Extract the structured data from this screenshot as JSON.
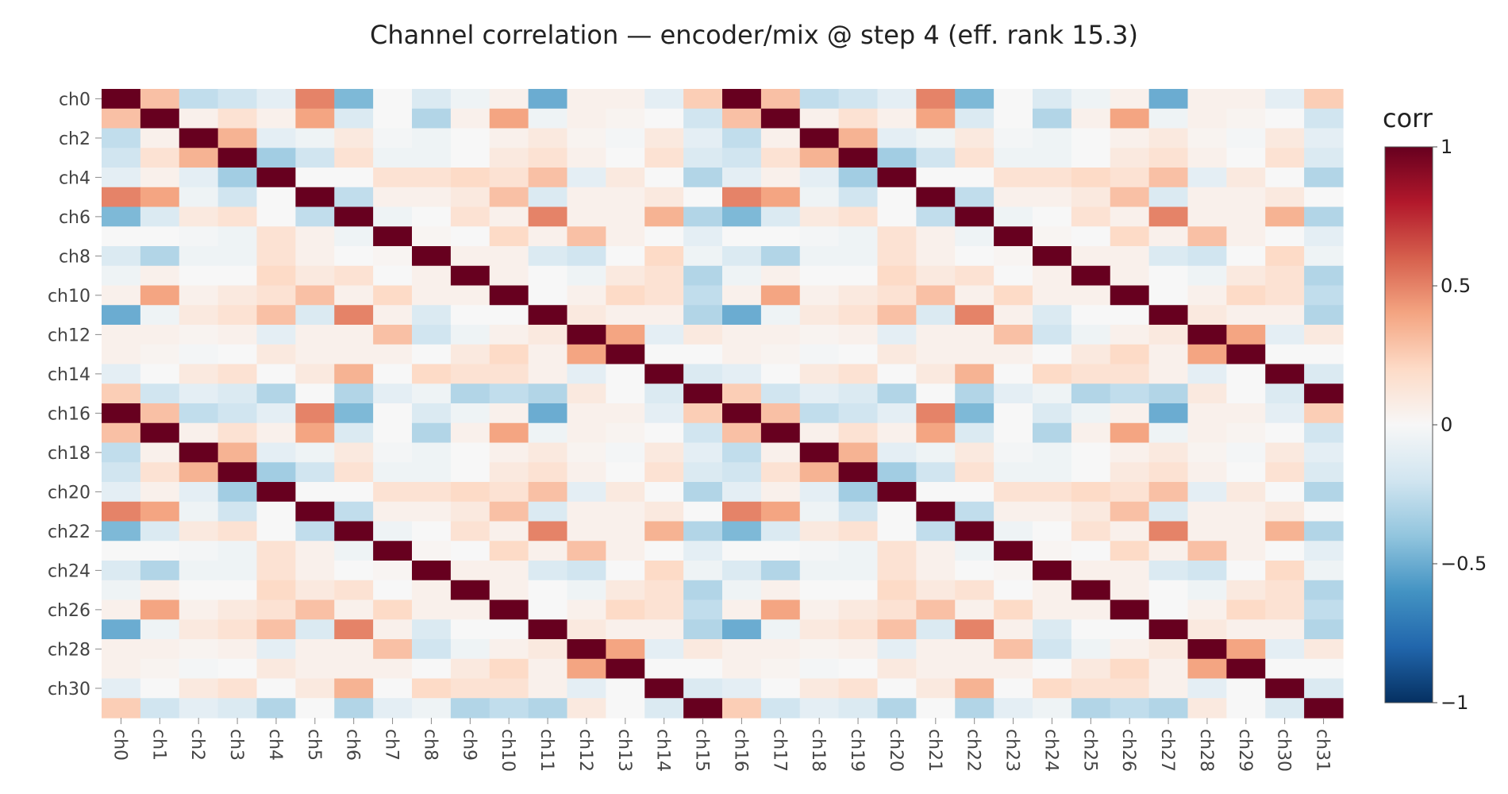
{
  "chart_data": {
    "type": "heatmap",
    "title": "Channel correlation — encoder/mix @ step 4 (eff. rank 15.3)",
    "x_labels": [
      "ch0",
      "ch1",
      "ch2",
      "ch3",
      "ch4",
      "ch5",
      "ch6",
      "ch7",
      "ch8",
      "ch9",
      "ch10",
      "ch11",
      "ch12",
      "ch13",
      "ch14",
      "ch15",
      "ch16",
      "ch17",
      "ch18",
      "ch19",
      "ch20",
      "ch21",
      "ch22",
      "ch23",
      "ch24",
      "ch25",
      "ch26",
      "ch27",
      "ch28",
      "ch29",
      "ch30",
      "ch31"
    ],
    "y_tick_labels": [
      "ch0",
      "ch2",
      "ch4",
      "ch6",
      "ch8",
      "ch10",
      "ch12",
      "ch14",
      "ch16",
      "ch18",
      "ch20",
      "ch22",
      "ch24",
      "ch26",
      "ch28",
      "ch30"
    ],
    "y_tick_indices": [
      0,
      2,
      4,
      6,
      8,
      10,
      12,
      14,
      16,
      18,
      20,
      22,
      24,
      26,
      28,
      30
    ],
    "z_range": [
      -1,
      1
    ],
    "colorscale": [
      "#053061",
      "#2166ac",
      "#4393c3",
      "#92c5de",
      "#d1e5f0",
      "#f7f7f7",
      "#fddbc7",
      "#f4a582",
      "#d6604d",
      "#b2182b",
      "#67001f"
    ],
    "colorbar": {
      "title": "corr",
      "ticks": [
        1,
        0.5,
        0,
        -0.5,
        -1
      ],
      "tick_labels": [
        "1",
        "0.5",
        "0",
        "−0.5",
        "−1"
      ]
    },
    "values": [
      [
        1.0,
        0.3,
        -0.25,
        -0.2,
        -0.1,
        0.5,
        -0.45,
        0.0,
        -0.15,
        -0.05,
        0.05,
        -0.5,
        0.05,
        0.05,
        -0.1,
        0.25,
        1.0,
        0.3,
        -0.25,
        -0.2,
        -0.1,
        0.5,
        -0.45,
        0.0,
        -0.15,
        -0.05,
        0.05,
        -0.5,
        0.05,
        0.05,
        -0.1,
        0.25
      ],
      [
        0.3,
        1.0,
        0.05,
        0.15,
        0.05,
        0.4,
        -0.15,
        0.0,
        -0.3,
        0.05,
        0.4,
        -0.05,
        0.05,
        0.03,
        0.0,
        -0.2,
        0.3,
        1.0,
        0.05,
        0.15,
        0.05,
        0.4,
        -0.15,
        0.0,
        -0.3,
        0.05,
        0.4,
        -0.05,
        0.05,
        0.03,
        0.0,
        -0.2
      ],
      [
        -0.25,
        0.05,
        1.0,
        0.35,
        -0.1,
        -0.05,
        0.1,
        -0.02,
        -0.05,
        0.0,
        0.05,
        0.1,
        0.03,
        -0.02,
        0.1,
        -0.1,
        -0.25,
        0.05,
        1.0,
        0.35,
        -0.1,
        -0.05,
        0.1,
        -0.02,
        -0.05,
        0.0,
        0.05,
        0.1,
        0.03,
        -0.02,
        0.1,
        -0.1
      ],
      [
        -0.2,
        0.15,
        0.35,
        1.0,
        -0.35,
        -0.2,
        0.15,
        -0.05,
        -0.05,
        0.0,
        0.1,
        0.15,
        0.05,
        0.0,
        0.15,
        -0.15,
        -0.2,
        0.15,
        0.35,
        1.0,
        -0.35,
        -0.2,
        0.15,
        -0.05,
        -0.05,
        0.0,
        0.1,
        0.15,
        0.05,
        0.0,
        0.15,
        -0.15
      ],
      [
        -0.1,
        0.05,
        -0.1,
        -0.35,
        1.0,
        0.0,
        0.0,
        0.15,
        0.15,
        0.2,
        0.15,
        0.3,
        -0.1,
        0.1,
        0.0,
        -0.3,
        -0.1,
        0.05,
        -0.1,
        -0.35,
        1.0,
        0.0,
        0.0,
        0.15,
        0.15,
        0.2,
        0.15,
        0.3,
        -0.1,
        0.1,
        0.0,
        -0.3
      ],
      [
        0.5,
        0.4,
        -0.05,
        -0.2,
        0.0,
        1.0,
        -0.25,
        0.05,
        0.05,
        0.1,
        0.3,
        -0.15,
        0.05,
        0.05,
        0.1,
        0.0,
        0.5,
        0.4,
        -0.05,
        -0.2,
        0.0,
        1.0,
        -0.25,
        0.05,
        0.05,
        0.1,
        0.3,
        -0.15,
        0.05,
        0.05,
        0.1,
        0.0
      ],
      [
        -0.45,
        -0.15,
        0.1,
        0.15,
        0.0,
        -0.25,
        1.0,
        -0.05,
        0.0,
        0.15,
        0.05,
        0.5,
        0.05,
        0.05,
        0.35,
        -0.3,
        -0.45,
        -0.15,
        0.1,
        0.15,
        0.0,
        -0.25,
        1.0,
        -0.05,
        0.0,
        0.15,
        0.05,
        0.5,
        0.05,
        0.05,
        0.35,
        -0.3
      ],
      [
        0.0,
        0.0,
        -0.02,
        -0.05,
        0.15,
        0.05,
        -0.05,
        1.0,
        0.02,
        0.0,
        0.2,
        0.05,
        0.3,
        0.05,
        0.0,
        -0.1,
        0.0,
        0.0,
        -0.02,
        -0.05,
        0.15,
        0.05,
        -0.05,
        1.0,
        0.02,
        0.0,
        0.2,
        0.05,
        0.3,
        0.05,
        0.0,
        -0.1
      ],
      [
        -0.15,
        -0.3,
        -0.05,
        -0.05,
        0.15,
        0.05,
        0.0,
        0.02,
        1.0,
        0.05,
        0.05,
        -0.15,
        -0.2,
        0.0,
        0.2,
        -0.05,
        -0.15,
        -0.3,
        -0.05,
        -0.05,
        0.15,
        0.05,
        0.0,
        0.02,
        1.0,
        0.05,
        0.05,
        -0.15,
        -0.2,
        0.0,
        0.2,
        -0.05
      ],
      [
        -0.05,
        0.05,
        0.0,
        0.0,
        0.2,
        0.1,
        0.15,
        0.0,
        0.05,
        1.0,
        0.05,
        0.0,
        -0.05,
        0.1,
        0.15,
        -0.3,
        -0.05,
        0.05,
        0.0,
        0.0,
        0.2,
        0.1,
        0.15,
        0.0,
        0.05,
        1.0,
        0.05,
        0.0,
        -0.05,
        0.1,
        0.15,
        -0.3
      ],
      [
        0.05,
        0.4,
        0.05,
        0.1,
        0.15,
        0.3,
        0.05,
        0.2,
        0.05,
        0.05,
        1.0,
        0.0,
        0.05,
        0.2,
        0.15,
        -0.25,
        0.05,
        0.4,
        0.05,
        0.1,
        0.15,
        0.3,
        0.05,
        0.2,
        0.05,
        0.05,
        1.0,
        0.0,
        0.05,
        0.2,
        0.15,
        -0.25
      ],
      [
        -0.5,
        -0.05,
        0.1,
        0.15,
        0.3,
        -0.15,
        0.5,
        0.05,
        -0.15,
        0.0,
        0.0,
        1.0,
        0.1,
        0.05,
        0.05,
        -0.3,
        -0.5,
        -0.05,
        0.1,
        0.15,
        0.3,
        -0.15,
        0.5,
        0.05,
        -0.15,
        0.0,
        0.0,
        1.0,
        0.1,
        0.05,
        0.05,
        -0.3
      ],
      [
        0.05,
        0.05,
        0.03,
        0.05,
        -0.1,
        0.05,
        0.05,
        0.3,
        -0.2,
        -0.05,
        0.05,
        0.1,
        1.0,
        0.4,
        -0.1,
        0.1,
        0.05,
        0.05,
        0.03,
        0.05,
        -0.1,
        0.05,
        0.05,
        0.3,
        -0.2,
        -0.05,
        0.05,
        0.1,
        1.0,
        0.4,
        -0.1,
        0.1
      ],
      [
        0.05,
        0.03,
        -0.02,
        0.0,
        0.1,
        0.05,
        0.05,
        0.05,
        0.0,
        0.1,
        0.2,
        0.05,
        0.4,
        1.0,
        0.0,
        0.0,
        0.05,
        0.03,
        -0.02,
        0.0,
        0.1,
        0.05,
        0.05,
        0.05,
        0.0,
        0.1,
        0.2,
        0.05,
        0.4,
        1.0,
        0.0,
        0.0
      ],
      [
        -0.1,
        0.0,
        0.1,
        0.15,
        0.0,
        0.1,
        0.35,
        0.0,
        0.2,
        0.15,
        0.15,
        0.05,
        -0.1,
        0.0,
        1.0,
        -0.15,
        -0.1,
        0.0,
        0.1,
        0.15,
        0.0,
        0.1,
        0.35,
        0.0,
        0.2,
        0.15,
        0.15,
        0.05,
        -0.1,
        0.0,
        1.0,
        -0.15
      ],
      [
        0.25,
        -0.2,
        -0.1,
        -0.15,
        -0.3,
        0.0,
        -0.3,
        -0.1,
        -0.05,
        -0.3,
        -0.25,
        -0.3,
        0.1,
        0.0,
        -0.15,
        1.0,
        0.25,
        -0.2,
        -0.1,
        -0.15,
        -0.3,
        0.0,
        -0.3,
        -0.1,
        -0.05,
        -0.3,
        -0.25,
        -0.3,
        0.1,
        0.0,
        -0.15,
        1.0
      ],
      [
        1.0,
        0.3,
        -0.25,
        -0.2,
        -0.1,
        0.5,
        -0.45,
        0.0,
        -0.15,
        -0.05,
        0.05,
        -0.5,
        0.05,
        0.05,
        -0.1,
        0.25,
        1.0,
        0.3,
        -0.25,
        -0.2,
        -0.1,
        0.5,
        -0.45,
        0.0,
        -0.15,
        -0.05,
        0.05,
        -0.5,
        0.05,
        0.05,
        -0.1,
        0.25
      ],
      [
        0.3,
        1.0,
        0.05,
        0.15,
        0.05,
        0.4,
        -0.15,
        0.0,
        -0.3,
        0.05,
        0.4,
        -0.05,
        0.05,
        0.03,
        0.0,
        -0.2,
        0.3,
        1.0,
        0.05,
        0.15,
        0.05,
        0.4,
        -0.15,
        0.0,
        -0.3,
        0.05,
        0.4,
        -0.05,
        0.05,
        0.03,
        0.0,
        -0.2
      ],
      [
        -0.25,
        0.05,
        1.0,
        0.35,
        -0.1,
        -0.05,
        0.1,
        -0.02,
        -0.05,
        0.0,
        0.05,
        0.1,
        0.03,
        -0.02,
        0.1,
        -0.1,
        -0.25,
        0.05,
        1.0,
        0.35,
        -0.1,
        -0.05,
        0.1,
        -0.02,
        -0.05,
        0.0,
        0.05,
        0.1,
        0.03,
        -0.02,
        0.1,
        -0.1
      ],
      [
        -0.2,
        0.15,
        0.35,
        1.0,
        -0.35,
        -0.2,
        0.15,
        -0.05,
        -0.05,
        0.0,
        0.1,
        0.15,
        0.05,
        0.0,
        0.15,
        -0.15,
        -0.2,
        0.15,
        0.35,
        1.0,
        -0.35,
        -0.2,
        0.15,
        -0.05,
        -0.05,
        0.0,
        0.1,
        0.15,
        0.05,
        0.0,
        0.15,
        -0.15
      ],
      [
        -0.1,
        0.05,
        -0.1,
        -0.35,
        1.0,
        0.0,
        0.0,
        0.15,
        0.15,
        0.2,
        0.15,
        0.3,
        -0.1,
        0.1,
        0.0,
        -0.3,
        -0.1,
        0.05,
        -0.1,
        -0.35,
        1.0,
        0.0,
        0.0,
        0.15,
        0.15,
        0.2,
        0.15,
        0.3,
        -0.1,
        0.1,
        0.0,
        -0.3
      ],
      [
        0.5,
        0.4,
        -0.05,
        -0.2,
        0.0,
        1.0,
        -0.25,
        0.05,
        0.05,
        0.1,
        0.3,
        -0.15,
        0.05,
        0.05,
        0.1,
        0.0,
        0.5,
        0.4,
        -0.05,
        -0.2,
        0.0,
        1.0,
        -0.25,
        0.05,
        0.05,
        0.1,
        0.3,
        -0.15,
        0.05,
        0.05,
        0.1,
        0.0
      ],
      [
        -0.45,
        -0.15,
        0.1,
        0.15,
        0.0,
        -0.25,
        1.0,
        -0.05,
        0.0,
        0.15,
        0.05,
        0.5,
        0.05,
        0.05,
        0.35,
        -0.3,
        -0.45,
        -0.15,
        0.1,
        0.15,
        0.0,
        -0.25,
        1.0,
        -0.05,
        0.0,
        0.15,
        0.05,
        0.5,
        0.05,
        0.05,
        0.35,
        -0.3
      ],
      [
        0.0,
        0.0,
        -0.02,
        -0.05,
        0.15,
        0.05,
        -0.05,
        1.0,
        0.02,
        0.0,
        0.2,
        0.05,
        0.3,
        0.05,
        0.0,
        -0.1,
        0.0,
        0.0,
        -0.02,
        -0.05,
        0.15,
        0.05,
        -0.05,
        1.0,
        0.02,
        0.0,
        0.2,
        0.05,
        0.3,
        0.05,
        0.0,
        -0.1
      ],
      [
        -0.15,
        -0.3,
        -0.05,
        -0.05,
        0.15,
        0.05,
        0.0,
        0.02,
        1.0,
        0.05,
        0.05,
        -0.15,
        -0.2,
        0.0,
        0.2,
        -0.05,
        -0.15,
        -0.3,
        -0.05,
        -0.05,
        0.15,
        0.05,
        0.0,
        0.02,
        1.0,
        0.05,
        0.05,
        -0.15,
        -0.2,
        0.0,
        0.2,
        -0.05
      ],
      [
        -0.05,
        0.05,
        0.0,
        0.0,
        0.2,
        0.1,
        0.15,
        0.0,
        0.05,
        1.0,
        0.05,
        0.0,
        -0.05,
        0.1,
        0.15,
        -0.3,
        -0.05,
        0.05,
        0.0,
        0.0,
        0.2,
        0.1,
        0.15,
        0.0,
        0.05,
        1.0,
        0.05,
        0.0,
        -0.05,
        0.1,
        0.15,
        -0.3
      ],
      [
        0.05,
        0.4,
        0.05,
        0.1,
        0.15,
        0.3,
        0.05,
        0.2,
        0.05,
        0.05,
        1.0,
        0.0,
        0.05,
        0.2,
        0.15,
        -0.25,
        0.05,
        0.4,
        0.05,
        0.1,
        0.15,
        0.3,
        0.05,
        0.2,
        0.05,
        0.05,
        1.0,
        0.0,
        0.05,
        0.2,
        0.15,
        -0.25
      ],
      [
        -0.5,
        -0.05,
        0.1,
        0.15,
        0.3,
        -0.15,
        0.5,
        0.05,
        -0.15,
        0.0,
        0.0,
        1.0,
        0.1,
        0.05,
        0.05,
        -0.3,
        -0.5,
        -0.05,
        0.1,
        0.15,
        0.3,
        -0.15,
        0.5,
        0.05,
        -0.15,
        0.0,
        0.0,
        1.0,
        0.1,
        0.05,
        0.05,
        -0.3
      ],
      [
        0.05,
        0.05,
        0.03,
        0.05,
        -0.1,
        0.05,
        0.05,
        0.3,
        -0.2,
        -0.05,
        0.05,
        0.1,
        1.0,
        0.4,
        -0.1,
        0.1,
        0.05,
        0.05,
        0.03,
        0.05,
        -0.1,
        0.05,
        0.05,
        0.3,
        -0.2,
        -0.05,
        0.05,
        0.1,
        1.0,
        0.4,
        -0.1,
        0.1
      ],
      [
        0.05,
        0.03,
        -0.02,
        0.0,
        0.1,
        0.05,
        0.05,
        0.05,
        0.0,
        0.1,
        0.2,
        0.05,
        0.4,
        1.0,
        0.0,
        0.0,
        0.05,
        0.03,
        -0.02,
        0.0,
        0.1,
        0.05,
        0.05,
        0.05,
        0.0,
        0.1,
        0.2,
        0.05,
        0.4,
        1.0,
        0.0,
        0.0
      ],
      [
        -0.1,
        0.0,
        0.1,
        0.15,
        0.0,
        0.1,
        0.35,
        0.0,
        0.2,
        0.15,
        0.15,
        0.05,
        -0.1,
        0.0,
        1.0,
        -0.15,
        -0.1,
        0.0,
        0.1,
        0.15,
        0.0,
        0.1,
        0.35,
        0.0,
        0.2,
        0.15,
        0.15,
        0.05,
        -0.1,
        0.0,
        1.0,
        -0.15
      ],
      [
        0.25,
        -0.2,
        -0.1,
        -0.15,
        -0.3,
        0.0,
        -0.3,
        -0.1,
        -0.05,
        -0.3,
        -0.25,
        -0.3,
        0.1,
        0.0,
        -0.15,
        1.0,
        0.25,
        -0.2,
        -0.1,
        -0.15,
        -0.3,
        0.0,
        -0.3,
        -0.1,
        -0.05,
        -0.3,
        -0.25,
        -0.3,
        0.1,
        0.0,
        -0.15,
        1.0
      ]
    ]
  }
}
